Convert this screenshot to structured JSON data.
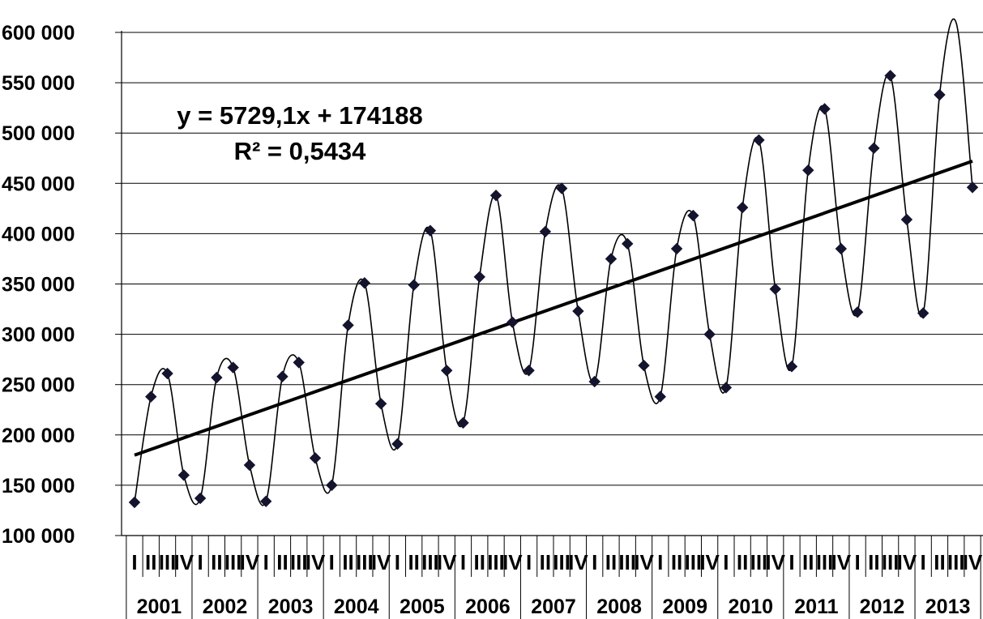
{
  "chart_data": {
    "type": "line",
    "title": "",
    "xlabel": "",
    "ylabel": "",
    "ylim": [
      100000,
      600000
    ],
    "y_ticks": [
      100000,
      150000,
      200000,
      250000,
      300000,
      350000,
      400000,
      450000,
      500000,
      550000,
      600000
    ],
    "y_tick_labels": [
      "100 000",
      "150 000",
      "200 000",
      "250 000",
      "300 000",
      "350 000",
      "400 000",
      "450 000",
      "500 000",
      "550 000",
      "600 000"
    ],
    "grid": true,
    "legend": "none",
    "quarter_labels": [
      "I",
      "II",
      "III",
      "IV"
    ],
    "years": [
      "2001",
      "2002",
      "2003",
      "2004",
      "2005",
      "2006",
      "2007",
      "2008",
      "2009",
      "2010",
      "2011",
      "2012",
      "2013"
    ],
    "series": [
      {
        "values": [
          133000,
          238000,
          261000,
          160000,
          137000,
          257000,
          267000,
          170000,
          134000,
          258000,
          272000,
          177000,
          150000,
          309000,
          351000,
          231000,
          191000,
          349000,
          403000,
          264000,
          212000,
          357000,
          438000,
          312000,
          264000,
          402000,
          445000,
          323000,
          253000,
          375000,
          390000,
          269000,
          238000,
          385000,
          418000,
          300000,
          247000,
          426000,
          493000,
          345000,
          268000,
          463000,
          524000,
          385000,
          322000,
          485000,
          557000,
          414000,
          321000,
          538000,
          610000,
          446000
        ]
      }
    ],
    "trendline": {
      "slope": 5729.1,
      "intercept": 174188,
      "equation": "y = 5729,1x + 174188",
      "r_squared": "R² = 0,5434"
    },
    "colors": {
      "series": "#000000",
      "marker": "#14142e",
      "trend": "#000000",
      "grid": "#000000"
    }
  }
}
